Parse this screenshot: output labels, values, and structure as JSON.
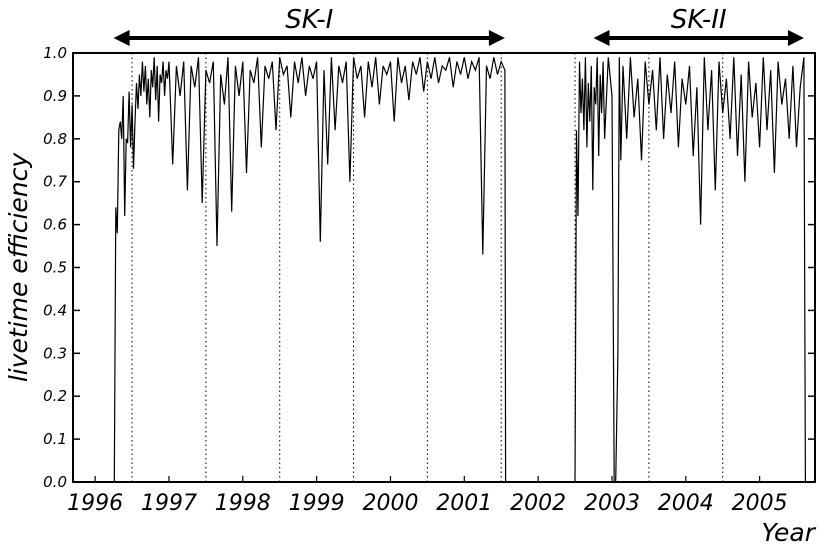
{
  "chart_data": {
    "type": "line",
    "xlabel": "Year",
    "ylabel": "livetime efficiency",
    "ylim": [
      0.0,
      1.0
    ],
    "xlim": [
      1995.7,
      2005.75
    ],
    "yticks": [
      "0.0",
      "0.1",
      "0.2",
      "0.3",
      "0.4",
      "0.5",
      "0.6",
      "0.7",
      "0.8",
      "0.9",
      "1.0"
    ],
    "xticks": [
      "1996",
      "1997",
      "1998",
      "1999",
      "2000",
      "2001",
      "2002",
      "2003",
      "2004",
      "2005"
    ],
    "year_boundaries": [
      1996.5,
      1997.5,
      1998.5,
      1999.5,
      2000.5,
      2001.5,
      2002.5,
      2003.5,
      2004.5
    ],
    "periods": [
      {
        "label": "SK-I",
        "start": 1996.25,
        "end": 2001.55
      },
      {
        "label": "SK-II",
        "start": 2002.75,
        "end": 2005.6
      }
    ],
    "series": [
      {
        "x": [
          1995.7,
          1996.0,
          1996.26,
          1996.28,
          1996.3,
          1996.32,
          1996.34,
          1996.36,
          1996.38,
          1996.4,
          1996.42,
          1996.44,
          1996.46,
          1996.48,
          1996.5,
          1996.52,
          1996.54,
          1996.56,
          1996.58,
          1996.6,
          1996.62,
          1996.64,
          1996.66,
          1996.68,
          1996.7,
          1996.72,
          1996.74,
          1996.76,
          1996.78,
          1996.8,
          1996.82,
          1996.84,
          1996.86,
          1996.88,
          1996.9,
          1996.92,
          1996.94,
          1996.96,
          1996.98,
          1997.0,
          1997.05,
          1997.1,
          1997.15,
          1997.2,
          1997.25,
          1997.3,
          1997.35,
          1997.4,
          1997.45,
          1997.5,
          1997.55,
          1997.6,
          1997.65,
          1997.7,
          1997.75,
          1997.8,
          1997.85,
          1997.9,
          1997.95,
          1998.0,
          1998.05,
          1998.1,
          1998.15,
          1998.2,
          1998.25,
          1998.3,
          1998.35,
          1998.4,
          1998.45,
          1998.5,
          1998.55,
          1998.6,
          1998.65,
          1998.7,
          1998.75,
          1998.8,
          1998.85,
          1998.9,
          1998.95,
          1999.0,
          1999.05,
          1999.1,
          1999.15,
          1999.2,
          1999.25,
          1999.3,
          1999.35,
          1999.4,
          1999.45,
          1999.5,
          1999.55,
          1999.6,
          1999.65,
          1999.7,
          1999.75,
          1999.8,
          1999.85,
          1999.9,
          1999.95,
          2000.0,
          2000.05,
          2000.1,
          2000.15,
          2000.2,
          2000.25,
          2000.3,
          2000.35,
          2000.4,
          2000.45,
          2000.5,
          2000.55,
          2000.6,
          2000.65,
          2000.7,
          2000.75,
          2000.8,
          2000.85,
          2000.9,
          2000.95,
          2001.0,
          2001.05,
          2001.1,
          2001.15,
          2001.2,
          2001.25,
          2001.3,
          2001.35,
          2001.4,
          2001.45,
          2001.5,
          2001.55,
          2001.56
        ],
        "y": [
          0.0,
          0.0,
          0.0,
          0.64,
          0.58,
          0.82,
          0.84,
          0.8,
          0.9,
          0.62,
          0.8,
          0.79,
          0.91,
          0.78,
          0.88,
          0.73,
          0.84,
          0.93,
          0.87,
          0.95,
          0.9,
          0.98,
          0.91,
          0.97,
          0.88,
          0.94,
          0.85,
          0.96,
          0.92,
          0.99,
          0.89,
          0.97,
          0.84,
          0.95,
          0.93,
          0.98,
          0.9,
          0.96,
          0.94,
          0.98,
          0.74,
          0.97,
          0.9,
          0.98,
          0.68,
          0.97,
          0.92,
          0.99,
          0.65,
          0.96,
          0.93,
          0.98,
          0.55,
          0.95,
          0.88,
          0.99,
          0.63,
          0.97,
          0.9,
          0.98,
          0.72,
          0.96,
          0.93,
          0.99,
          0.78,
          0.97,
          0.94,
          0.98,
          0.82,
          0.99,
          0.95,
          0.97,
          0.85,
          0.98,
          0.93,
          0.99,
          0.9,
          0.97,
          0.94,
          0.98,
          0.56,
          0.96,
          0.74,
          0.99,
          0.82,
          0.97,
          0.93,
          0.98,
          0.7,
          0.99,
          0.94,
          0.97,
          0.85,
          0.98,
          0.92,
          0.99,
          0.88,
          0.97,
          0.95,
          0.98,
          0.84,
          0.99,
          0.93,
          0.97,
          0.89,
          0.98,
          0.95,
          0.99,
          0.91,
          0.98,
          0.94,
          0.99,
          0.93,
          0.97,
          0.96,
          0.99,
          0.92,
          0.98,
          0.95,
          0.99,
          0.94,
          0.98,
          0.96,
          0.99,
          0.53,
          0.97,
          0.94,
          0.99,
          0.95,
          0.98,
          0.96,
          0.0
        ]
      },
      {
        "x": [
          2002.5,
          2002.52,
          2002.54,
          2002.56,
          2002.58,
          2002.6,
          2002.62,
          2002.64,
          2002.66,
          2002.68,
          2002.7,
          2002.72,
          2002.74,
          2002.76,
          2002.78,
          2002.8,
          2002.82,
          2002.84,
          2002.86,
          2002.88,
          2002.9,
          2002.95,
          2003.0,
          2003.03,
          2003.05,
          2003.08,
          2003.1,
          2003.12,
          2003.15,
          2003.2,
          2003.25,
          2003.3,
          2003.35,
          2003.4,
          2003.45,
          2003.5,
          2003.55,
          2003.6,
          2003.65,
          2003.7,
          2003.75,
          2003.8,
          2003.85,
          2003.9,
          2003.95,
          2004.0,
          2004.05,
          2004.1,
          2004.15,
          2004.2,
          2004.25,
          2004.3,
          2004.35,
          2004.4,
          2004.45,
          2004.5,
          2004.55,
          2004.6,
          2004.65,
          2004.7,
          2004.75,
          2004.8,
          2004.85,
          2004.9,
          2004.95,
          2005.0,
          2005.05,
          2005.1,
          2005.15,
          2005.2,
          2005.25,
          2005.3,
          2005.35,
          2005.4,
          2005.45,
          2005.5,
          2005.55,
          2005.6,
          2005.62
        ],
        "y": [
          0.0,
          0.82,
          0.62,
          0.98,
          0.86,
          0.94,
          0.82,
          0.99,
          0.78,
          0.93,
          0.84,
          0.97,
          0.68,
          0.92,
          0.88,
          0.99,
          0.76,
          0.95,
          0.86,
          0.98,
          0.8,
          0.99,
          0.9,
          0.0,
          0.0,
          0.3,
          0.99,
          0.75,
          0.97,
          0.8,
          0.99,
          0.85,
          0.94,
          0.75,
          0.98,
          0.88,
          0.96,
          0.82,
          0.99,
          0.8,
          0.95,
          0.86,
          0.98,
          0.78,
          0.94,
          0.88,
          0.97,
          0.76,
          0.92,
          0.6,
          0.99,
          0.82,
          0.96,
          0.68,
          0.98,
          0.86,
          0.94,
          0.8,
          0.99,
          0.76,
          0.95,
          0.7,
          0.98,
          0.85,
          0.93,
          0.78,
          0.99,
          0.82,
          0.96,
          0.72,
          0.98,
          0.88,
          0.94,
          0.8,
          0.97,
          0.78,
          0.92,
          0.99,
          0.0
        ]
      }
    ]
  }
}
